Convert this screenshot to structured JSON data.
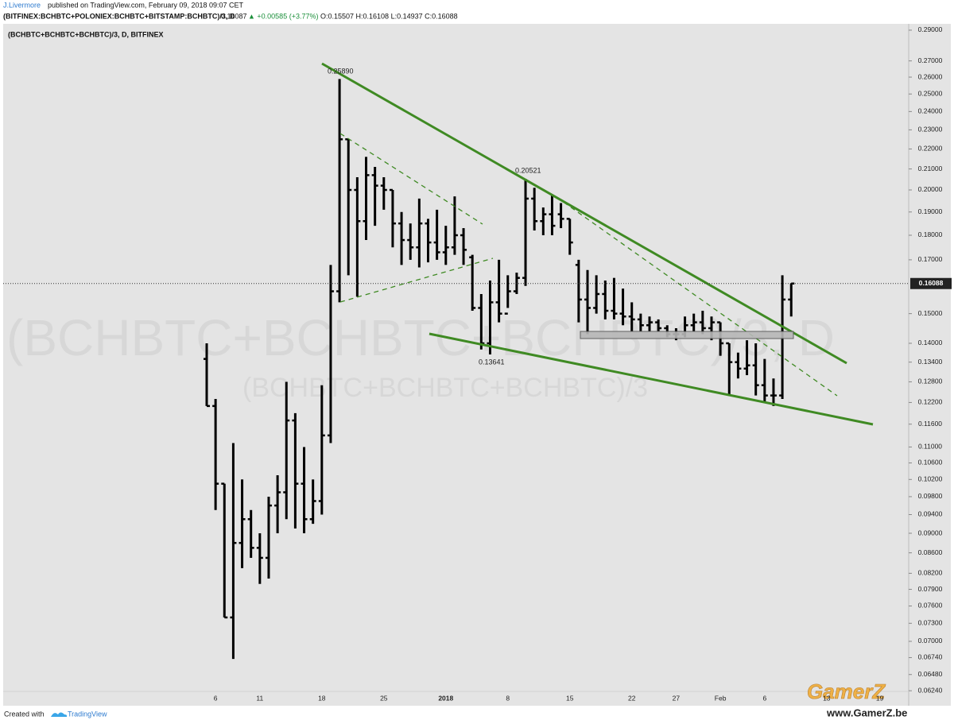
{
  "header": {
    "author": "J.Livermore",
    "published": "published on TradingView.com, February 09, 2018 09:07 CET",
    "symbol": "(BITFINEX:BCHBTC+POLONIEX:BCHBTC+BITSTAMP:BCHBTC)/3, D",
    "price": "0.16087",
    "change": "▲ +0.00585 (+3.77%)",
    "ohlc": "O:0.15507 H:0.16108 L:0.14937 C:0.16088"
  },
  "chart_data": {
    "type": "ohlc",
    "title": "(BCHBTC+BCHBTC+BCHBTC)/3, D, BITFINEX",
    "watermark": "(BCHBTC+BCHBTC+BCHBTC)/3, D",
    "watermark_sub": "(BCHBTC+BCHBTC+BCHBTC)/3",
    "color": "#000000",
    "log_scale": true,
    "categories": [
      null,
      "6",
      null,
      null,
      null,
      null,
      "11",
      null,
      null,
      null,
      null,
      null,
      null,
      "18",
      null,
      null,
      null,
      null,
      null,
      null,
      "25",
      null,
      null,
      null,
      null,
      null,
      null,
      "2018",
      null,
      null,
      null,
      null,
      null,
      null,
      "8",
      null,
      null,
      null,
      null,
      null,
      null,
      "15",
      null,
      null,
      null,
      null,
      null,
      null,
      "22",
      null,
      null,
      null,
      null,
      "27",
      null,
      null,
      null,
      null,
      "Feb",
      null,
      null,
      null,
      null,
      "6",
      null,
      null,
      null,
      null,
      null,
      null,
      "13",
      null,
      null,
      null,
      null,
      null,
      "19"
    ],
    "open": [
      0.135,
      0.121,
      0.101,
      0.074,
      0.088,
      0.093,
      0.087,
      0.085,
      0.096,
      0.099,
      0.117,
      0.101,
      0.093,
      0.097,
      0.113,
      0.158,
      0.225,
      0.2,
      0.186,
      0.207,
      0.202,
      0.2,
      0.185,
      0.178,
      0.175,
      0.185,
      0.177,
      0.173,
      0.175,
      0.18,
      0.171,
      0.152,
      0.14,
      0.154,
      0.15,
      0.158,
      0.163,
      0.196,
      0.186,
      0.189,
      0.189,
      0.187,
      0.168,
      0.155,
      0.152,
      0.157,
      0.151,
      0.15,
      0.149,
      0.148,
      0.146,
      0.147,
      0.145,
      0.143,
      0.143,
      0.146,
      0.147,
      0.145,
      0.147,
      0.14,
      0.134,
      0.132,
      0.133,
      0.127,
      0.124,
      0.124,
      0.155,
      null,
      null,
      null,
      null,
      null,
      null,
      null,
      null,
      null,
      null
    ],
    "high": [
      0.14,
      0.123,
      0.101,
      0.111,
      0.102,
      0.095,
      0.09,
      0.098,
      0.103,
      0.128,
      0.119,
      0.11,
      0.102,
      0.127,
      0.168,
      0.2589,
      0.225,
      0.206,
      0.216,
      0.211,
      0.206,
      0.2,
      0.19,
      0.185,
      0.196,
      0.187,
      0.191,
      0.184,
      0.197,
      0.183,
      0.172,
      0.157,
      0.162,
      0.17,
      0.164,
      0.165,
      0.20521,
      0.201,
      0.192,
      0.198,
      0.194,
      0.187,
      0.17,
      0.166,
      0.164,
      0.162,
      0.163,
      0.159,
      0.154,
      0.15,
      0.149,
      0.148,
      0.146,
      0.145,
      0.149,
      0.15,
      0.151,
      0.149,
      0.147,
      0.14,
      0.137,
      0.141,
      0.14,
      0.135,
      0.129,
      0.164,
      0.161,
      null,
      null,
      null,
      null,
      null,
      null,
      null,
      null,
      null,
      null
    ],
    "low": [
      0.121,
      0.095,
      0.074,
      0.0672,
      0.083,
      0.085,
      0.08,
      0.081,
      0.09,
      0.093,
      0.091,
      0.09,
      0.092,
      0.094,
      0.111,
      0.154,
      0.164,
      0.156,
      0.178,
      0.184,
      0.191,
      0.175,
      0.168,
      0.17,
      0.167,
      0.169,
      0.17,
      0.168,
      0.172,
      0.168,
      0.151,
      0.138,
      0.13641,
      0.147,
      0.152,
      0.157,
      0.16,
      0.182,
      0.18,
      0.18,
      0.183,
      0.172,
      0.147,
      0.143,
      0.15,
      0.148,
      0.148,
      0.146,
      0.144,
      0.144,
      0.144,
      0.144,
      0.142,
      0.141,
      0.142,
      0.144,
      0.143,
      0.141,
      0.136,
      0.124,
      0.129,
      0.13,
      0.124,
      0.122,
      0.121,
      0.123,
      0.149,
      null,
      null,
      null,
      null,
      null,
      null,
      null,
      null,
      null,
      null
    ],
    "close": [
      0.121,
      0.101,
      0.074,
      0.088,
      0.093,
      0.087,
      0.085,
      0.096,
      0.099,
      0.117,
      0.101,
      0.093,
      0.097,
      0.113,
      0.158,
      0.225,
      0.2,
      0.186,
      0.207,
      0.202,
      0.2,
      0.185,
      0.178,
      0.175,
      0.185,
      0.177,
      0.173,
      0.175,
      0.18,
      0.174,
      0.152,
      0.14,
      0.154,
      0.15,
      0.158,
      0.163,
      0.196,
      0.186,
      0.189,
      0.184,
      0.187,
      0.177,
      0.155,
      0.152,
      0.157,
      0.151,
      0.15,
      0.149,
      0.148,
      0.146,
      0.147,
      0.145,
      0.143,
      0.143,
      0.146,
      0.147,
      0.145,
      0.147,
      0.14,
      0.134,
      0.132,
      0.133,
      0.127,
      0.124,
      0.124,
      0.155,
      0.16088,
      null,
      null,
      null,
      null,
      null,
      null,
      null,
      null,
      null,
      null
    ],
    "last_price": 0.16088,
    "annotations": [
      "0.25890",
      "0.20521",
      "0.13641"
    ],
    "ylim": [
      0.0606,
      0.2943
    ],
    "yticks": [
      {
        "value": 0.29,
        "label": "0.29000"
      },
      {
        "value": 0.27,
        "label": "0.27000"
      },
      {
        "value": 0.26,
        "label": "0.26000"
      },
      {
        "value": 0.25,
        "label": "0.25000"
      },
      {
        "value": 0.24,
        "label": "0.24000"
      },
      {
        "value": 0.23,
        "label": "0.23000"
      },
      {
        "value": 0.22,
        "label": "0.22000"
      },
      {
        "value": 0.21,
        "label": "0.21000"
      },
      {
        "value": 0.2,
        "label": "0.20000"
      },
      {
        "value": 0.19,
        "label": "0.19000"
      },
      {
        "value": 0.18,
        "label": "0.18000"
      },
      {
        "value": 0.17,
        "label": "0.17000"
      },
      {
        "value": 0.15,
        "label": "0.15000"
      },
      {
        "value": 0.14,
        "label": "0.14000"
      },
      {
        "value": 0.134,
        "label": "0.13400"
      },
      {
        "value": 0.128,
        "label": "0.12800"
      },
      {
        "value": 0.122,
        "label": "0.12200"
      },
      {
        "value": 0.116,
        "label": "0.11600"
      },
      {
        "value": 0.11,
        "label": "0.11000"
      },
      {
        "value": 0.106,
        "label": "0.10600"
      },
      {
        "value": 0.102,
        "label": "0.10200"
      },
      {
        "value": 0.098,
        "label": "0.09800"
      },
      {
        "value": 0.094,
        "label": "0.09400"
      },
      {
        "value": 0.09,
        "label": "0.09000"
      },
      {
        "value": 0.086,
        "label": "0.08600"
      },
      {
        "value": 0.082,
        "label": "0.08200"
      },
      {
        "value": 0.079,
        "label": "0.07900"
      },
      {
        "value": 0.076,
        "label": "0.07600"
      },
      {
        "value": 0.073,
        "label": "0.07300"
      },
      {
        "value": 0.07,
        "label": "0.07000"
      },
      {
        "value": 0.0674,
        "label": "0.06740"
      },
      {
        "value": 0.0648,
        "label": "0.06480"
      },
      {
        "value": 0.0624,
        "label": "0.06240"
      }
    ],
    "grid": false
  },
  "footer": {
    "created": "Created with",
    "brand": "TradingView"
  },
  "overlay": {
    "logo": "GamerZ",
    "site": "www.GamerZ.be"
  }
}
